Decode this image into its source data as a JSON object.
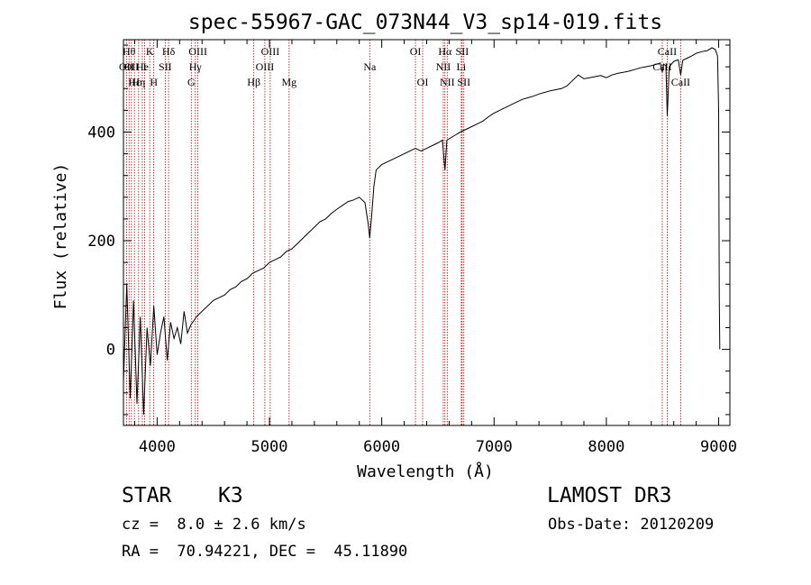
{
  "chart_data": {
    "type": "line",
    "title": "spec-55967-GAC_073N44_V3_sp14-019.fits",
    "xlabel": "Wavelength (Å)",
    "ylabel": "Flux (relative)",
    "xlim": [
      3700,
      9100
    ],
    "ylim": [
      -140,
      570
    ],
    "xticks": [
      4000,
      5000,
      6000,
      7000,
      8000,
      9000
    ],
    "xtick_labels": [
      "4000",
      "5000",
      "6000",
      "7000",
      "8000",
      "9000"
    ],
    "yticks": [
      0,
      200,
      400
    ],
    "ytick_labels": [
      "0",
      "200",
      "400"
    ],
    "series": [
      {
        "name": "flux",
        "x": [
          3700,
          3730,
          3760,
          3790,
          3820,
          3850,
          3880,
          3910,
          3940,
          3970,
          4000,
          4030,
          4060,
          4090,
          4120,
          4150,
          4180,
          4210,
          4240,
          4270,
          4300,
          4350,
          4400,
          4450,
          4500,
          4550,
          4600,
          4650,
          4700,
          4750,
          4800,
          4850,
          4900,
          4950,
          5000,
          5050,
          5100,
          5150,
          5200,
          5250,
          5300,
          5350,
          5400,
          5450,
          5500,
          5550,
          5600,
          5650,
          5700,
          5750,
          5800,
          5850,
          5880,
          5893,
          5910,
          5930,
          5950,
          6000,
          6050,
          6100,
          6150,
          6200,
          6250,
          6300,
          6350,
          6400,
          6450,
          6500,
          6540,
          6563,
          6580,
          6620,
          6660,
          6700,
          6750,
          6800,
          6850,
          6900,
          6950,
          7000,
          7050,
          7100,
          7150,
          7200,
          7250,
          7300,
          7350,
          7400,
          7450,
          7500,
          7550,
          7600,
          7650,
          7700,
          7750,
          7800,
          7850,
          7900,
          7950,
          8000,
          8050,
          8100,
          8150,
          8200,
          8250,
          8300,
          8350,
          8400,
          8450,
          8480,
          8498,
          8510,
          8530,
          8542,
          8560,
          8600,
          8640,
          8662,
          8680,
          8720,
          8760,
          8800,
          8850,
          8900,
          8940,
          8970,
          8990,
          9000,
          9005,
          9010
        ],
        "y": [
          -60,
          120,
          -90,
          90,
          -100,
          60,
          -120,
          40,
          -30,
          80,
          -10,
          30,
          60,
          -20,
          50,
          20,
          40,
          10,
          70,
          30,
          45,
          60,
          70,
          80,
          90,
          95,
          100,
          110,
          115,
          125,
          130,
          140,
          145,
          150,
          160,
          165,
          170,
          180,
          185,
          195,
          205,
          215,
          225,
          235,
          240,
          250,
          258,
          265,
          272,
          275,
          280,
          270,
          230,
          205,
          245,
          300,
          330,
          340,
          345,
          350,
          355,
          360,
          365,
          370,
          365,
          370,
          375,
          380,
          385,
          330,
          385,
          390,
          395,
          400,
          405,
          410,
          415,
          420,
          428,
          435,
          440,
          445,
          450,
          455,
          460,
          463,
          466,
          470,
          473,
          476,
          478,
          480,
          485,
          495,
          505,
          498,
          500,
          502,
          504,
          500,
          505,
          508,
          510,
          512,
          515,
          518,
          520,
          522,
          525,
          527,
          510,
          525,
          522,
          430,
          520,
          530,
          533,
          505,
          532,
          536,
          540,
          545,
          548,
          550,
          555,
          552,
          540,
          440,
          100,
          0
        ]
      }
    ],
    "lines": [
      {
        "x": 3727,
        "label": "OII",
        "row": 2
      },
      {
        "x": 3750,
        "label": "Hθ",
        "row": 1
      },
      {
        "x": 3771,
        "label": "OII",
        "row": 2
      },
      {
        "x": 3798,
        "label": "Hε",
        "row": 3
      },
      {
        "x": 3835,
        "label": "Hη",
        "row": 3
      },
      {
        "x": 3868,
        "label": "He",
        "row": 2
      },
      {
        "x": 3889,
        "label": "I",
        "row": 2
      },
      {
        "x": 3934,
        "label": "K",
        "row": 1
      },
      {
        "x": 3970,
        "label": "H",
        "row": 3
      },
      {
        "x": 4072,
        "label": "SII",
        "row": 2
      },
      {
        "x": 4102,
        "label": "Hδ",
        "row": 1
      },
      {
        "x": 4304,
        "label": "G",
        "row": 3
      },
      {
        "x": 4340,
        "label": "Hγ",
        "row": 2
      },
      {
        "x": 4363,
        "label": "OIII",
        "row": 1
      },
      {
        "x": 4861,
        "label": "Hβ",
        "row": 3
      },
      {
        "x": 4959,
        "label": "OIII",
        "row": 2
      },
      {
        "x": 5007,
        "label": "OIII",
        "row": 1
      },
      {
        "x": 5175,
        "label": "Mg",
        "row": 3
      },
      {
        "x": 5893,
        "label": "Na",
        "row": 2
      },
      {
        "x": 6300,
        "label": "OI",
        "row": 1
      },
      {
        "x": 6364,
        "label": "OI",
        "row": 3
      },
      {
        "x": 6548,
        "label": "NII",
        "row": 2
      },
      {
        "x": 6563,
        "label": "Hα",
        "row": 1
      },
      {
        "x": 6583,
        "label": "NII",
        "row": 3
      },
      {
        "x": 6708,
        "label": "Li",
        "row": 2
      },
      {
        "x": 6716,
        "label": "SII",
        "row": 1
      },
      {
        "x": 6731,
        "label": "SII",
        "row": 3
      },
      {
        "x": 8498,
        "label": "CaII",
        "row": 2
      },
      {
        "x": 8542,
        "label": "CaII",
        "row": 1
      },
      {
        "x": 8662,
        "label": "CaII",
        "row": 3
      }
    ]
  },
  "info": {
    "object_class": "STAR",
    "subclass": "K3",
    "survey": "LAMOST DR3",
    "redshift": "cz =  8.0 ± 2.6 km/s",
    "obs_date": "Obs-Date: 20120209",
    "coords": "RA =  70.94221, DEC =  45.11890"
  },
  "colors": {
    "line_marker": "#aa0000",
    "spectrum": "#000000"
  }
}
